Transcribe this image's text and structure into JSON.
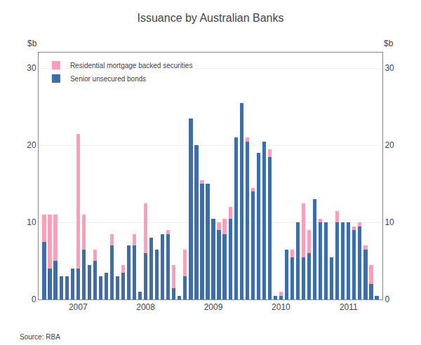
{
  "chart_data": {
    "type": "bar",
    "title": "Issuance by Australian Banks",
    "ylabel": "$b",
    "y2label": "$b",
    "annotations": [
      "Source: RBA"
    ],
    "stacked": true,
    "grid": true,
    "legend": "upper left",
    "categories": [
      null,
      null,
      null,
      null,
      null,
      null,
      "2007",
      null,
      null,
      null,
      null,
      null,
      null,
      null,
      null,
      null,
      null,
      null,
      "2008",
      null,
      null,
      null,
      null,
      null,
      null,
      null,
      null,
      null,
      null,
      null,
      "2009",
      null,
      null,
      null,
      null,
      null,
      null,
      null,
      null,
      null,
      null,
      null,
      "2010",
      null,
      null,
      null,
      null,
      null,
      null,
      null,
      null,
      null,
      null,
      null,
      "2011",
      null,
      null,
      null,
      null,
      null
    ],
    "series": [
      {
        "name": "Senior unsecured bonds",
        "color": "#3E6EA8",
        "values": [
          7.5,
          4.0,
          5.0,
          3.0,
          3.0,
          4.0,
          4.0,
          6.5,
          4.5,
          5.0,
          3.0,
          3.5,
          7.0,
          3.0,
          3.5,
          7.0,
          7.0,
          1.0,
          6.0,
          8.0,
          6.5,
          8.5,
          8.5,
          1.5,
          0.5,
          3.0,
          23.5,
          20.0,
          15.0,
          15.0,
          10.5,
          9.0,
          8.5,
          10.5,
          21.0,
          25.5,
          20.5,
          14.0,
          19.0,
          20.5,
          18.5,
          0.5,
          0.5,
          6.5,
          5.5,
          10.0,
          5.5,
          6.0,
          13.0,
          10.0,
          10.0,
          5.5,
          10.0,
          10.0,
          10.0,
          9.0,
          9.5,
          6.5,
          2.0,
          0.5
        ]
      },
      {
        "name": "Residential mortgage backed securities",
        "color": "#FF9EBB",
        "values": [
          3.5,
          7.0,
          6.0,
          0.0,
          0.0,
          0.0,
          17.5,
          4.5,
          0.0,
          1.5,
          0.0,
          0.0,
          1.5,
          0.0,
          1.0,
          0.0,
          1.5,
          0.0,
          6.5,
          0.0,
          0.0,
          0.0,
          0.5,
          3.0,
          0.0,
          3.5,
          0.0,
          0.0,
          0.5,
          0.0,
          0.0,
          1.0,
          2.0,
          1.5,
          0.0,
          0.0,
          0.5,
          0.5,
          0.0,
          0.0,
          1.0,
          0.0,
          0.5,
          0.0,
          1.0,
          0.0,
          7.0,
          3.0,
          0.0,
          0.5,
          0.0,
          0.0,
          1.5,
          0.0,
          0.0,
          0.5,
          0.5,
          0.5,
          2.5,
          0.0
        ]
      }
    ],
    "ylim": [
      0,
      32
    ],
    "yticks": [
      0,
      10,
      20,
      30
    ],
    "y2lim": [
      0,
      32
    ],
    "y2ticks": [
      0,
      10,
      20,
      30
    ]
  }
}
